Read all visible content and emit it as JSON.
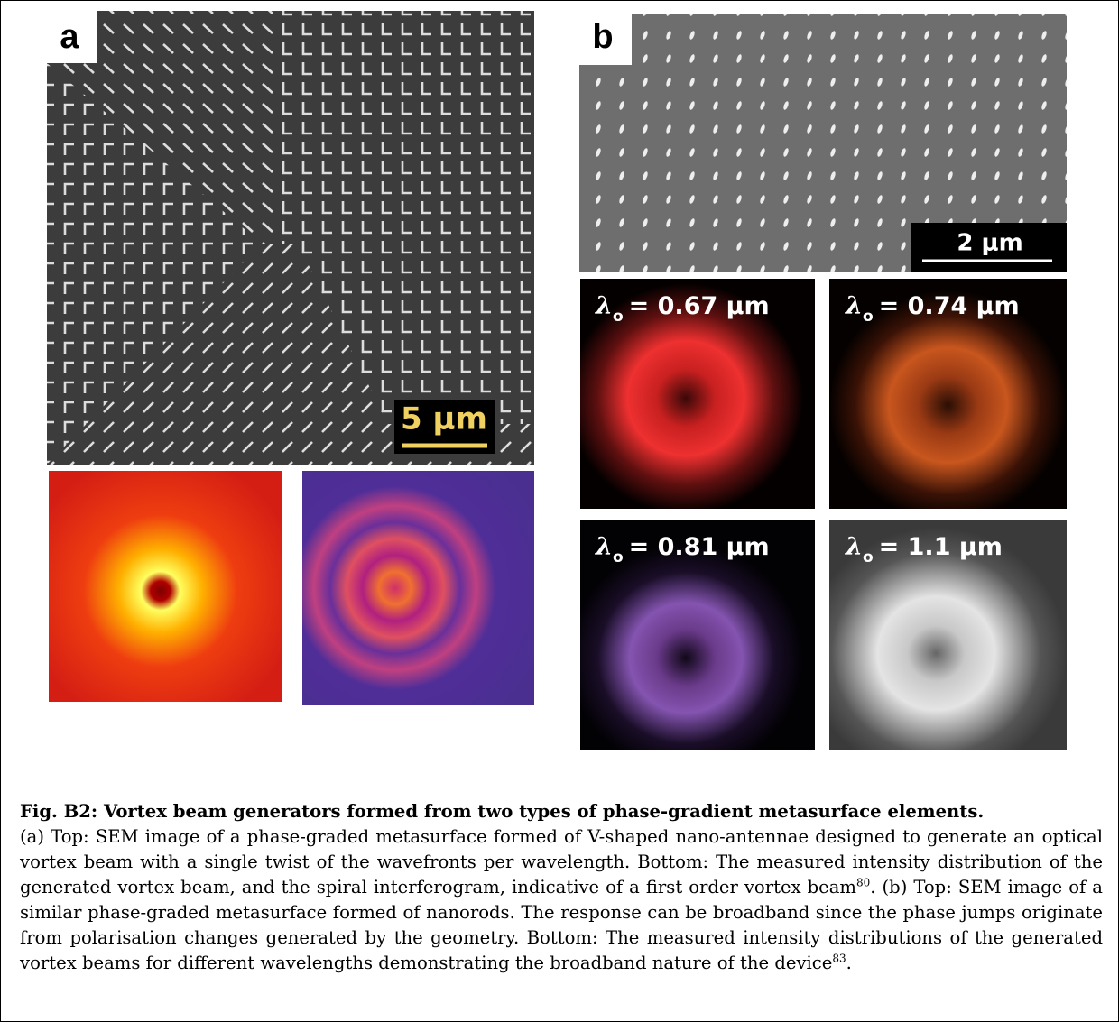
{
  "panels": {
    "a": {
      "label": "a",
      "scale_bar": "5 μm"
    },
    "b": {
      "label": "b",
      "scale_bar": "2 μm",
      "wavelengths": [
        {
          "symbol": "λ",
          "subscript": "o",
          "value": "= 0.67 μm"
        },
        {
          "symbol": "λ",
          "subscript": "o",
          "value": "= 0.74 μm"
        },
        {
          "symbol": "λ",
          "subscript": "o",
          "value": "= 0.81 μm"
        },
        {
          "symbol": "λ",
          "subscript": "o",
          "value": "= 1.1 μm"
        }
      ]
    }
  },
  "caption": {
    "title": "Fig. B2: Vortex beam generators formed from two types of phase-gradient metasurface elements.",
    "body": [
      "(a) Top: SEM image of a phase-graded metasurface formed of V-shaped nano-antennae designed to generate an optical vortex beam with a single twist of the wavefronts per wavelength. Bottom: The measured intensity distribution of the generated vortex beam, and the spiral interferogram, indicative of a first order vortex beam",
      "80",
      ". (b) Top: SEM image of a similar phase-graded metasurface formed of nanorods. The response can be broadband since the phase jumps originate from polarisation changes generated by the geometry. Bottom: The measured intensity distributions of the generated vortex beams for different wavelengths demonstrating the broadband nature of the device",
      "83",
      "."
    ]
  }
}
